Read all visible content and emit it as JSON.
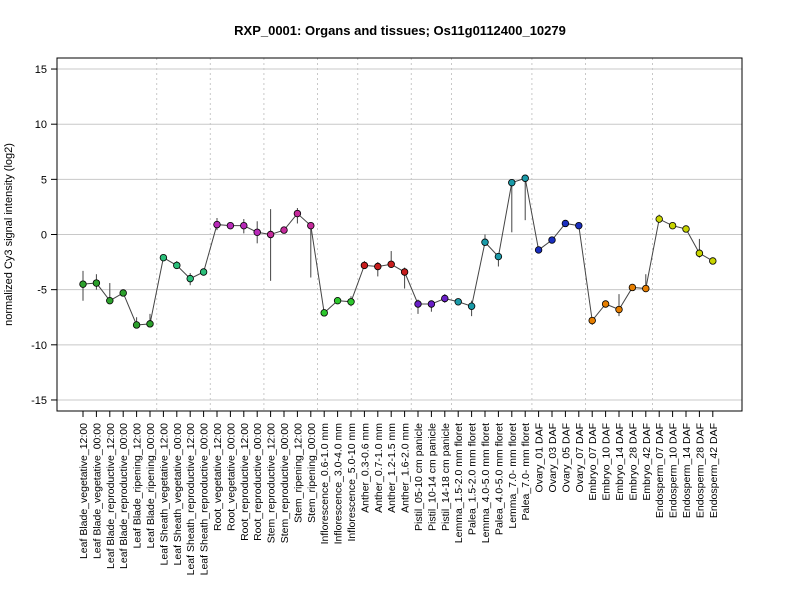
{
  "chart_data": {
    "type": "line",
    "title": "RXP_0001: Organs and tissues; Os11g0112400_10279",
    "xlabel": "",
    "ylabel": "normalized Cy3 signal intensity (log2)",
    "ylim": [
      -16,
      16
    ],
    "yticks": [
      -15,
      -10,
      -5,
      0,
      5,
      10,
      15
    ],
    "grid": {
      "horizontal": true,
      "vertical_dotted": true
    },
    "line_color": "#444444",
    "categories": [
      "Leaf Blade_vegetative_12:00",
      "Leaf Blade_vegetative_00:00",
      "Leaf Blade_reproductive_12:00",
      "Leaf Blade_reproductive_00:00",
      "Leaf Blade_ripening_12:00",
      "Leaf Blade_ripening_00:00",
      "Leaf Sheath_vegetative_12:00",
      "Leaf Sheath_vegetative_00:00",
      "Leaf Sheath_reproductive_12:00",
      "Leaf Sheath_reproductive_00:00",
      "Root_vegetative_12:00",
      "Root_vegetative_00:00",
      "Root_reproductive_12:00",
      "Root_reproductive_00:00",
      "Stem_reproductive_12:00",
      "Stem_reproductive_00:00",
      "Stem_ripening_12:00",
      "Stem_ripening_00:00",
      "Inflorescence_0.6-1.0 mm",
      "Inflorescence_3.0-4.0 mm",
      "Inflorescence_5.0-10 mm",
      "Anther_0.3-0.6 mm",
      "Anther_0.7-1.0 mm",
      "Anther_1.2-1.5 mm",
      "Anther_1.6-2.0 mm",
      "Pistil_05-10 cm panicle",
      "Pistil_10-14 cm panicle",
      "Pistil_14-18 cm panicle",
      "Lemma_1.5-2.0 mm floret",
      "Palea_1.5-2.0 mm floret",
      "Lemma_4.0-5.0 mm floret",
      "Palea_4.0-5.0 mm floret",
      "Lemma_7.0- mm floret",
      "Palea_7.0- mm floret",
      "Ovary_01 DAF",
      "Ovary_03 DAF",
      "Ovary_05 DAF",
      "Ovary_07 DAF",
      "Embryo_07 DAF",
      "Embryo_10 DAF",
      "Embryo_14 DAF",
      "Embryo_28 DAF",
      "Embryo_42 DAF",
      "Endosperm_07 DAF",
      "Endosperm_10 DAF",
      "Endosperm_14 DAF",
      "Endosperm_28 DAF",
      "Endosperm_42 DAF"
    ],
    "values": [
      -4.5,
      -4.4,
      -6.0,
      -5.3,
      -8.2,
      -8.1,
      -2.1,
      -2.8,
      -4.0,
      -3.4,
      0.9,
      0.8,
      0.8,
      0.2,
      0.0,
      0.4,
      1.9,
      0.8,
      -7.1,
      -6.0,
      -6.1,
      -2.8,
      -2.9,
      -2.7,
      -3.4,
      -6.3,
      -6.3,
      -5.8,
      -6.1,
      -6.5,
      -0.7,
      -2.0,
      4.7,
      5.1,
      -1.4,
      -0.5,
      1.0,
      0.8,
      -7.8,
      -6.3,
      -6.8,
      -4.8,
      -4.9,
      1.4,
      0.8,
      0.5,
      -1.7,
      -2.4
    ],
    "error_low": [
      -6.0,
      -5.0,
      -6.3,
      -5.6,
      -8.5,
      -8.3,
      -2.3,
      -3.1,
      -4.6,
      -3.7,
      0.4,
      0.6,
      0.1,
      -0.8,
      -4.2,
      0.1,
      1.0,
      -3.9,
      -7.3,
      -6.1,
      -6.5,
      -3.1,
      -3.8,
      -3.0,
      -4.9,
      -7.2,
      -7.0,
      -6.2,
      -6.4,
      -7.4,
      -0.9,
      -2.9,
      0.2,
      1.3,
      -1.6,
      -0.7,
      0.8,
      0.6,
      -8.2,
      -6.5,
      -7.4,
      -5.0,
      -5.1,
      1.1,
      0.6,
      0.2,
      -2.1,
      -2.6
    ],
    "error_high": [
      -3.3,
      -3.6,
      -4.4,
      -5.0,
      -7.5,
      -7.2,
      -1.9,
      -2.4,
      -3.5,
      -3.1,
      1.5,
      1.0,
      1.4,
      1.2,
      2.3,
      0.7,
      2.4,
      1.0,
      -6.9,
      -5.8,
      -5.6,
      -2.4,
      -2.5,
      -1.5,
      -3.0,
      -5.9,
      -6.0,
      -5.4,
      -5.8,
      -6.0,
      0.0,
      -1.7,
      5.0,
      5.3,
      -1.2,
      -0.3,
      1.2,
      1.0,
      -7.6,
      -6.1,
      -5.4,
      -4.6,
      -3.6,
      1.8,
      1.0,
      0.8,
      -0.4,
      -2.2
    ],
    "colors": [
      "#2ca02c",
      "#2ca02c",
      "#2ca02c",
      "#2ca02c",
      "#2ca02c",
      "#2ca02c",
      "#2bbf7a",
      "#2bbf7a",
      "#2bbf7a",
      "#2bbf7a",
      "#b82ab8",
      "#b82ab8",
      "#b82ab8",
      "#b82ab8",
      "#c42a9b",
      "#c42a9b",
      "#c42a9b",
      "#c42a9b",
      "#2dc72d",
      "#2dc72d",
      "#2dc72d",
      "#c81e1e",
      "#c81e1e",
      "#c81e1e",
      "#c81e1e",
      "#6a1fc7",
      "#6a1fc7",
      "#6a1fc7",
      "#1a9aa8",
      "#1a9aa8",
      "#1a9aa8",
      "#1a9aa8",
      "#1a9aa8",
      "#1a9aa8",
      "#1a2fbf",
      "#1a2fbf",
      "#1a2fbf",
      "#1a2fbf",
      "#e67e00",
      "#e67e00",
      "#e67e00",
      "#e67e00",
      "#e67e00",
      "#c8d400",
      "#c8d400",
      "#c8d400",
      "#c8d400",
      "#c8d400"
    ],
    "group_boundaries_after": [
      5,
      9,
      13,
      17,
      20,
      24,
      27,
      33,
      37,
      42
    ]
  }
}
